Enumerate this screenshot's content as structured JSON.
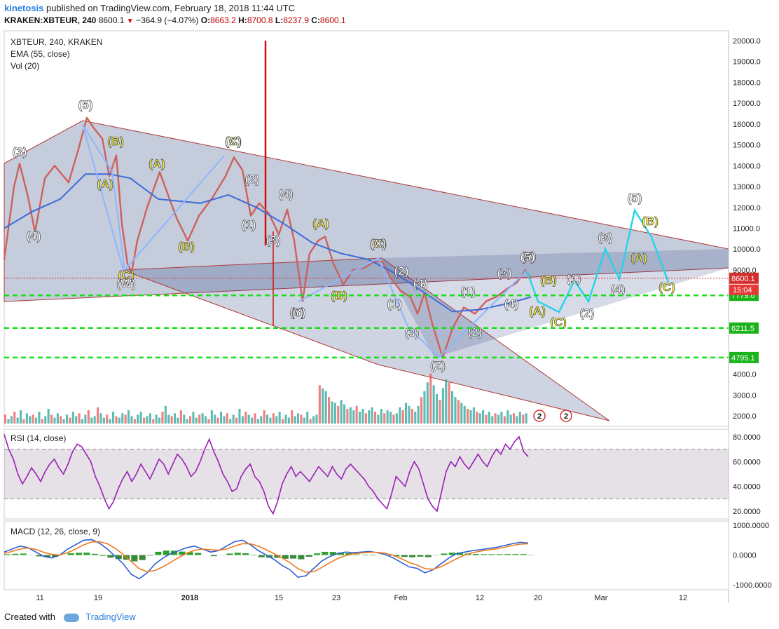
{
  "header": {
    "author": "kinetosis",
    "published": "published on TradingView.com, February 18, 2018 11:44 UTC",
    "symbol": "KRAKEN:XBTEUR, 240",
    "last": "8600.1",
    "change": "−364.9 (−4.07%)",
    "open_label": "O:",
    "open": "8663.2",
    "high_label": "H:",
    "high": "8700.8",
    "low_label": "L:",
    "low": "8237.9",
    "close_label": "C:",
    "close": "8600.1"
  },
  "legend": {
    "title": "XBTEUR, 240, KRAKEN",
    "ema": "EMA (55, close)",
    "vol": "Vol (20)",
    "rsi": "RSI (14, close)",
    "macd": "MACD (12, 26, close, 9)"
  },
  "footer": {
    "created": "Created with",
    "brand": "TradingView"
  },
  "colors": {
    "up": "#26a69a",
    "down": "#ef5350",
    "ema": "#3d6bd8",
    "channel": "#b03a3a",
    "fill": "#203a78",
    "level": "#14e014",
    "rsi": "#9a1fb5",
    "cyan": "#29d3ea",
    "yellow": "#f4ef4a",
    "white": "#ffffff",
    "price_tag": "#d32f2f",
    "level_tag": "#1bb31b"
  },
  "chart_data": {
    "type": "line",
    "title": "XBTEUR, 240, KRAKEN",
    "x_ticks": [
      "11",
      "19",
      "2018",
      "15",
      "23",
      "Feb",
      "12",
      "20",
      "Mar",
      "12"
    ],
    "price_axis": {
      "ticks": [
        "20000.0",
        "19000.0",
        "18000.0",
        "17000.0",
        "16000.0",
        "15000.0",
        "14000.0",
        "13000.0",
        "12000.0",
        "11000.0",
        "10000.0",
        "9000.0",
        "4000.0",
        "3000.0",
        "2000.0"
      ],
      "ylim": [
        1500,
        20500
      ]
    },
    "current_price": "8600.1",
    "countdown": "15:04",
    "levels": [
      "7779.6",
      "6211.5",
      "4795.1"
    ],
    "price_path": [
      [
        0,
        9500
      ],
      [
        8,
        11500
      ],
      [
        14,
        13000
      ],
      [
        22,
        14100
      ],
      [
        34,
        12500
      ],
      [
        44,
        10800
      ],
      [
        58,
        13400
      ],
      [
        72,
        14000
      ],
      [
        92,
        13200
      ],
      [
        106,
        14800
      ],
      [
        118,
        16300
      ],
      [
        128,
        15800
      ],
      [
        140,
        15300
      ],
      [
        150,
        13500
      ],
      [
        160,
        14500
      ],
      [
        168,
        11200
      ],
      [
        176,
        9300
      ],
      [
        182,
        8900
      ],
      [
        190,
        10400
      ],
      [
        204,
        12000
      ],
      [
        222,
        13700
      ],
      [
        236,
        12400
      ],
      [
        246,
        11500
      ],
      [
        262,
        10400
      ],
      [
        278,
        11600
      ],
      [
        298,
        12500
      ],
      [
        316,
        13500
      ],
      [
        328,
        14400
      ],
      [
        340,
        13800
      ],
      [
        352,
        11600
      ],
      [
        364,
        12200
      ],
      [
        378,
        11700
      ],
      [
        392,
        10700
      ],
      [
        404,
        11900
      ],
      [
        414,
        10400
      ],
      [
        426,
        7500
      ],
      [
        436,
        9800
      ],
      [
        448,
        10400
      ],
      [
        458,
        10600
      ],
      [
        470,
        9300
      ],
      [
        484,
        8300
      ],
      [
        498,
        9000
      ],
      [
        514,
        9100
      ],
      [
        528,
        9400
      ],
      [
        540,
        9400
      ],
      [
        552,
        8600
      ],
      [
        566,
        8000
      ],
      [
        580,
        7700
      ],
      [
        590,
        6900
      ],
      [
        600,
        7900
      ],
      [
        612,
        6300
      ],
      [
        626,
        4800
      ],
      [
        640,
        6200
      ],
      [
        656,
        7200
      ],
      [
        672,
        6900
      ],
      [
        688,
        7500
      ],
      [
        702,
        7700
      ],
      [
        718,
        8100
      ],
      [
        732,
        8400
      ],
      [
        744,
        9000
      ],
      [
        752,
        8600
      ]
    ],
    "ema_path": [
      [
        0,
        11000
      ],
      [
        40,
        11800
      ],
      [
        80,
        12400
      ],
      [
        116,
        13600
      ],
      [
        150,
        13600
      ],
      [
        180,
        13400
      ],
      [
        220,
        12400
      ],
      [
        280,
        12200
      ],
      [
        320,
        12600
      ],
      [
        360,
        12000
      ],
      [
        400,
        11200
      ],
      [
        440,
        10300
      ],
      [
        480,
        9800
      ],
      [
        520,
        9500
      ],
      [
        560,
        8800
      ],
      [
        600,
        7900
      ],
      [
        640,
        7000
      ],
      [
        680,
        7100
      ],
      [
        720,
        7400
      ],
      [
        752,
        7700
      ]
    ],
    "volume": [
      6,
      3,
      5,
      8,
      4,
      9,
      3,
      7,
      5,
      6,
      4,
      8,
      3,
      5,
      10,
      6,
      4,
      7,
      5,
      3,
      6,
      4,
      8,
      5,
      7,
      3,
      6,
      9,
      4,
      5,
      11,
      7,
      4,
      6,
      3,
      8,
      5,
      4,
      7,
      6,
      9,
      5,
      3,
      6,
      8,
      4,
      5,
      7,
      3,
      6,
      4,
      8,
      12,
      6,
      5,
      7,
      4,
      9,
      6,
      3,
      5,
      8,
      4,
      6,
      7,
      5,
      3,
      9,
      6,
      4,
      8,
      5,
      7,
      3,
      6,
      4,
      10,
      5,
      8,
      6,
      4,
      7,
      3,
      5,
      9,
      6,
      4,
      7,
      5,
      8,
      3,
      6,
      4,
      9,
      5,
      7,
      6,
      4,
      8,
      3,
      5,
      6,
      26,
      24,
      22,
      18,
      15,
      14,
      12,
      16,
      13,
      10,
      11,
      9,
      12,
      8,
      10,
      7,
      9,
      11,
      8,
      6,
      10,
      7,
      9,
      8,
      6,
      7,
      11,
      9,
      14,
      12,
      10,
      8,
      12,
      18,
      22,
      28,
      34,
      26,
      20,
      16,
      24,
      30,
      28,
      22,
      18,
      16,
      14,
      12,
      10,
      9,
      11,
      8,
      7,
      9,
      6,
      8,
      5,
      7,
      6,
      8,
      5,
      9,
      6,
      7,
      5,
      8,
      6,
      7
    ],
    "rsi": {
      "ticks": [
        "80.0000",
        "60.0000",
        "40.0000",
        "20.0000"
      ],
      "levels": [
        70,
        30
      ],
      "range": [
        15,
        85
      ],
      "values": [
        82,
        70,
        62,
        50,
        42,
        48,
        55,
        50,
        44,
        52,
        58,
        62,
        55,
        50,
        58,
        68,
        74,
        72,
        66,
        60,
        48,
        40,
        30,
        22,
        28,
        38,
        46,
        52,
        44,
        50,
        58,
        52,
        46,
        54,
        62,
        58,
        50,
        58,
        66,
        62,
        56,
        48,
        52,
        60,
        70,
        78,
        68,
        60,
        50,
        44,
        36,
        38,
        48,
        54,
        58,
        48,
        44,
        36,
        24,
        18,
        28,
        42,
        50,
        56,
        48,
        52,
        48,
        44,
        50,
        56,
        52,
        48,
        56,
        50,
        46,
        54,
        58,
        54,
        50,
        46,
        40,
        36,
        30,
        26,
        22,
        34,
        48,
        44,
        40,
        52,
        60,
        54,
        42,
        30,
        24,
        20,
        36,
        52,
        60,
        56,
        64,
        58,
        54,
        60,
        66,
        60,
        56,
        64,
        70,
        66,
        74,
        70,
        76,
        80,
        68,
        64
      ]
    },
    "macd": {
      "ticks": [
        "1000.0000",
        "0.0000",
        "-1000.0000"
      ],
      "range": [
        -1100,
        1100
      ],
      "macd": [
        100,
        200,
        300,
        250,
        100,
        -50,
        -100,
        0,
        200,
        350,
        500,
        520,
        400,
        200,
        -50,
        -300,
        -650,
        -800,
        -600,
        -300,
        -100,
        50,
        150,
        250,
        300,
        200,
        100,
        150,
        300,
        450,
        500,
        350,
        150,
        0,
        -150,
        -350,
        -500,
        -750,
        -700,
        -450,
        -200,
        -50,
        50,
        100,
        80,
        100,
        120,
        80,
        20,
        -100,
        -250,
        -400,
        -450,
        -600,
        -500,
        -300,
        -100,
        50,
        100,
        150,
        180,
        220,
        260,
        320,
        380,
        430,
        400
      ],
      "signal": [
        50,
        120,
        200,
        240,
        190,
        90,
        20,
        0,
        80,
        200,
        340,
        440,
        450,
        380,
        220,
        20,
        -220,
        -460,
        -560,
        -520,
        -400,
        -240,
        -80,
        60,
        160,
        200,
        180,
        160,
        200,
        300,
        380,
        380,
        300,
        180,
        40,
        -100,
        -260,
        -460,
        -580,
        -560,
        -420,
        -260,
        -120,
        -20,
        40,
        70,
        90,
        90,
        60,
        -10,
        -120,
        -250,
        -340,
        -460,
        -480,
        -400,
        -260,
        -120,
        0,
        80,
        130,
        170,
        210,
        260,
        320,
        370,
        380
      ]
    }
  },
  "wave_labels": [
    {
      "t": "(3)",
      "c": "white"
    },
    {
      "t": "(4)",
      "c": "white"
    },
    {
      "t": "(5)",
      "c": "white"
    },
    {
      "t": "(B)",
      "c": "yellow"
    },
    {
      "t": "(A)",
      "c": "yellow"
    },
    {
      "t": "(A)",
      "c": "yellow"
    },
    {
      "t": "(C)",
      "c": "yellow"
    },
    {
      "t": "(W)",
      "c": "white"
    },
    {
      "t": "(B)",
      "c": "yellow"
    },
    {
      "t": "(C)",
      "c": "yellow"
    },
    {
      "t": "(X)",
      "c": "white"
    },
    {
      "t": "(2)",
      "c": "white"
    },
    {
      "t": "(1)",
      "c": "white"
    },
    {
      "t": "(3)",
      "c": "white"
    },
    {
      "t": "(4)",
      "c": "white"
    },
    {
      "t": "(5)",
      "c": "white"
    },
    {
      "t": "(Y)",
      "c": "white"
    },
    {
      "t": "(A)",
      "c": "yellow"
    },
    {
      "t": "(B)",
      "c": "yellow"
    },
    {
      "t": "(C)",
      "c": "yellow"
    },
    {
      "t": "(X)",
      "c": "white"
    },
    {
      "t": "(2)",
      "c": "white"
    },
    {
      "t": "(1)",
      "c": "white"
    },
    {
      "t": "(4)",
      "c": "white"
    },
    {
      "t": "(3)",
      "c": "white"
    },
    {
      "t": "(5)",
      "c": "white"
    },
    {
      "t": "(Z)",
      "c": "white"
    },
    {
      "t": "(1)",
      "c": "white"
    },
    {
      "t": "(2)",
      "c": "white"
    },
    {
      "t": "(3)",
      "c": "white"
    },
    {
      "t": "(4)",
      "c": "white"
    },
    {
      "t": "(5)",
      "c": "white"
    },
    {
      "t": "(B)",
      "c": "yellow"
    },
    {
      "t": "(A)",
      "c": "yellow"
    },
    {
      "t": "(C)",
      "c": "yellow"
    },
    {
      "t": "(1)",
      "c": "white"
    },
    {
      "t": "(2)",
      "c": "white"
    },
    {
      "t": "(3)",
      "c": "white"
    },
    {
      "t": "(4)",
      "c": "white"
    },
    {
      "t": "(5)",
      "c": "white"
    },
    {
      "t": "(B)",
      "c": "yellow"
    },
    {
      "t": "(A)",
      "c": "yellow"
    },
    {
      "t": "(C)",
      "c": "yellow"
    }
  ],
  "events": [
    "2",
    "2"
  ]
}
